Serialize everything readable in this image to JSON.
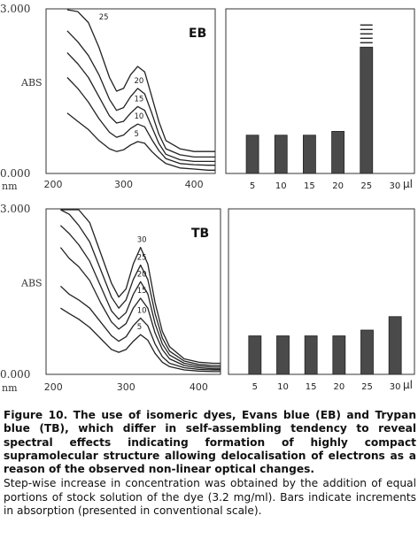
{
  "chart_data": [
    {
      "panel": "EB",
      "type": "line",
      "title": "EB",
      "ylabel": "ABS",
      "xlabel": "nm",
      "yticks": [
        "3.000",
        "0.000"
      ],
      "xticks": [
        "200",
        "300",
        "400"
      ],
      "ylim": [
        0,
        3
      ],
      "xlim": [
        190,
        430
      ],
      "series": [
        {
          "name": "5",
          "x": [
            220,
            235,
            250,
            265,
            280,
            290,
            300,
            310,
            320,
            330,
            340,
            350,
            360,
            380,
            400,
            420,
            430
          ],
          "y": [
            1.1,
            0.95,
            0.8,
            0.6,
            0.45,
            0.4,
            0.43,
            0.52,
            0.58,
            0.55,
            0.4,
            0.28,
            0.18,
            0.1,
            0.08,
            0.06,
            0.06
          ]
        },
        {
          "name": "10",
          "x": [
            220,
            235,
            250,
            265,
            280,
            290,
            300,
            310,
            320,
            330,
            340,
            350,
            360,
            380,
            400,
            420,
            430
          ],
          "y": [
            1.75,
            1.55,
            1.3,
            1.0,
            0.75,
            0.66,
            0.7,
            0.82,
            0.9,
            0.85,
            0.62,
            0.42,
            0.27,
            0.18,
            0.16,
            0.15,
            0.15
          ]
        },
        {
          "name": "15",
          "x": [
            220,
            235,
            250,
            265,
            280,
            290,
            300,
            310,
            320,
            330,
            340,
            350,
            360,
            380,
            400,
            420,
            430
          ],
          "y": [
            2.2,
            2.0,
            1.75,
            1.4,
            1.05,
            0.92,
            0.95,
            1.1,
            1.22,
            1.15,
            0.85,
            0.55,
            0.35,
            0.25,
            0.22,
            0.22,
            0.22
          ]
        },
        {
          "name": "20",
          "x": [
            220,
            235,
            250,
            265,
            280,
            290,
            300,
            310,
            320,
            330,
            340,
            350,
            360,
            380,
            400,
            420,
            430
          ],
          "y": [
            2.6,
            2.4,
            2.15,
            1.8,
            1.35,
            1.15,
            1.2,
            1.4,
            1.55,
            1.45,
            1.1,
            0.72,
            0.45,
            0.34,
            0.3,
            0.3,
            0.3
          ]
        },
        {
          "name": "25",
          "x": [
            220,
            235,
            250,
            265,
            280,
            290,
            300,
            310,
            320,
            330,
            340,
            350,
            360,
            380,
            400,
            420,
            430
          ],
          "y": [
            3.0,
            2.95,
            2.75,
            2.3,
            1.75,
            1.5,
            1.55,
            1.8,
            1.95,
            1.85,
            1.4,
            0.95,
            0.6,
            0.45,
            0.4,
            0.4,
            0.4
          ]
        }
      ]
    },
    {
      "panel": "EB",
      "type": "bar",
      "categories": [
        "5",
        "10",
        "15",
        "20",
        "25",
        "30"
      ],
      "values": [
        1.0,
        1.0,
        1.0,
        1.1,
        3.3,
        null
      ],
      "unit": "µl",
      "ylim": [
        0,
        4.3
      ],
      "notes": "bar at 25 extends beyond scale (stacked dashes above)"
    },
    {
      "panel": "TB",
      "type": "line",
      "title": "TB",
      "ylabel": "ABS",
      "xlabel": "nm",
      "yticks": [
        "3.000",
        "0.000"
      ],
      "xticks": [
        "200",
        "300",
        "400"
      ],
      "ylim": [
        0,
        3
      ],
      "xlim": [
        190,
        430
      ],
      "series": [
        {
          "name": "5",
          "x": [
            210,
            222,
            235,
            250,
            265,
            280,
            290,
            300,
            310,
            320,
            330,
            340,
            350,
            360,
            380,
            400,
            420,
            430
          ],
          "y": [
            1.2,
            1.1,
            1.0,
            0.85,
            0.65,
            0.45,
            0.4,
            0.45,
            0.6,
            0.72,
            0.62,
            0.38,
            0.22,
            0.14,
            0.08,
            0.06,
            0.05,
            0.05
          ]
        },
        {
          "name": "10",
          "x": [
            210,
            222,
            235,
            250,
            265,
            280,
            290,
            300,
            310,
            320,
            330,
            340,
            350,
            360,
            380,
            400,
            420,
            430
          ],
          "y": [
            1.6,
            1.45,
            1.35,
            1.2,
            0.95,
            0.7,
            0.6,
            0.68,
            0.88,
            1.02,
            0.88,
            0.55,
            0.32,
            0.2,
            0.12,
            0.09,
            0.08,
            0.08
          ]
        },
        {
          "name": "15",
          "x": [
            210,
            222,
            235,
            250,
            265,
            280,
            290,
            300,
            310,
            320,
            330,
            340,
            350,
            360,
            380,
            400,
            420,
            430
          ],
          "y": [
            2.3,
            2.1,
            1.95,
            1.7,
            1.3,
            0.95,
            0.82,
            0.92,
            1.2,
            1.38,
            1.2,
            0.75,
            0.45,
            0.28,
            0.16,
            0.12,
            0.1,
            0.1
          ]
        },
        {
          "name": "20",
          "x": [
            210,
            222,
            235,
            250,
            265,
            280,
            290,
            300,
            310,
            320,
            330,
            340,
            350,
            360,
            380,
            400,
            420,
            430
          ],
          "y": [
            2.7,
            2.55,
            2.35,
            2.05,
            1.6,
            1.15,
            1.0,
            1.12,
            1.45,
            1.68,
            1.46,
            0.92,
            0.55,
            0.35,
            0.2,
            0.15,
            0.13,
            0.13
          ]
        },
        {
          "name": "25",
          "x": [
            210,
            222,
            235,
            250,
            265,
            280,
            290,
            300,
            310,
            320,
            330,
            340,
            350,
            360,
            380,
            400,
            420,
            430
          ],
          "y": [
            3.0,
            2.9,
            2.7,
            2.4,
            1.9,
            1.4,
            1.2,
            1.35,
            1.72,
            1.98,
            1.72,
            1.1,
            0.66,
            0.42,
            0.24,
            0.18,
            0.16,
            0.16
          ]
        },
        {
          "name": "30",
          "x": [
            210,
            222,
            235,
            250,
            265,
            280,
            290,
            300,
            310,
            320,
            330,
            340,
            350,
            360,
            380,
            400,
            420,
            430
          ],
          "y": [
            3.0,
            3.0,
            3.0,
            2.75,
            2.2,
            1.65,
            1.4,
            1.55,
            2.0,
            2.3,
            2.0,
            1.3,
            0.78,
            0.5,
            0.28,
            0.22,
            0.2,
            0.2
          ]
        }
      ]
    },
    {
      "panel": "TB",
      "type": "bar",
      "categories": [
        "5",
        "10",
        "15",
        "20",
        "25",
        "30"
      ],
      "values": [
        1.0,
        1.0,
        1.0,
        1.0,
        1.15,
        1.5
      ],
      "unit": "µl",
      "ylim": [
        0,
        4.3
      ]
    }
  ],
  "caption": {
    "title": "Figure 10. The use of isomeric dyes, Evans blue (EB) and Trypan blue (TB), which differ in self-assembling tendency to reveal spectral effects indicating formation of highly compact supramolecular structure allowing delocalisation of electrons as a reason of the observed non-linear optical changes.",
    "body": "Step-wise increase in concentration was obtained by the addition of equal portions of stock solution of the dye (3.2 mg/ml). Bars indicate increments in absorption (presented in conventional scale)."
  },
  "colors": {
    "bar_fill": "#4a4a4a",
    "curve": "#222222",
    "axis": "#333333"
  }
}
